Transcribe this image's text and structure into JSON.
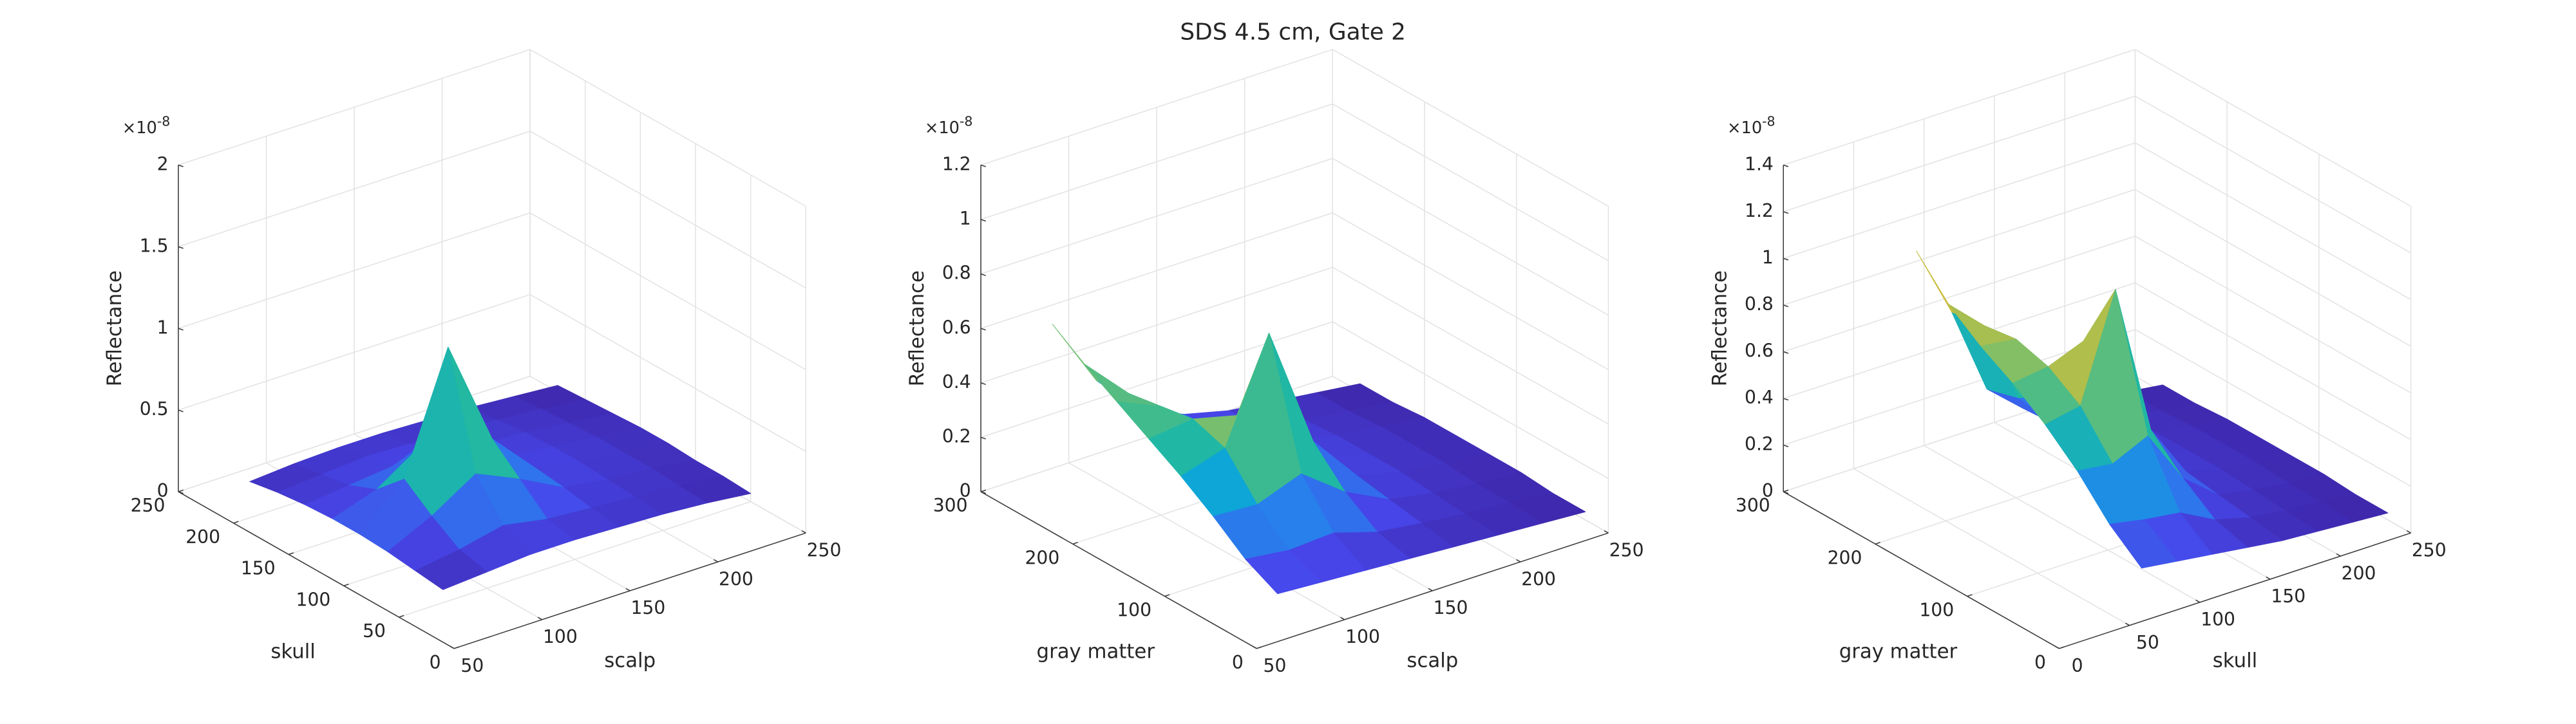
{
  "title": "SDS 4.5 cm, Gate 2",
  "chart_data": [
    {
      "type": "surface",
      "xlabel": "scalp",
      "ylabel": "skull",
      "zlabel": "Reflectance",
      "z_multiplier": "×10",
      "z_exponent": "-8",
      "colormap": "parula",
      "grid": true,
      "xlim": [
        50,
        250
      ],
      "ylim": [
        0,
        250
      ],
      "zlim": [
        0,
        2
      ],
      "xticks": [
        50,
        100,
        150,
        200,
        250
      ],
      "yticks": [
        0,
        50,
        100,
        150,
        200,
        250
      ],
      "zticks": [
        0,
        0.5,
        1,
        1.5,
        2
      ],
      "x": [
        75,
        100,
        125,
        150,
        175,
        200,
        225,
        250
      ],
      "y": [
        50,
        75,
        100,
        125,
        150,
        175,
        200,
        225
      ],
      "z": [
        [
          0.08,
          0.1,
          0.12,
          0.12,
          0.11,
          0.1,
          0.08,
          0.05
        ],
        [
          0.1,
          0.14,
          0.2,
          0.15,
          0.13,
          0.11,
          0.09,
          0.06
        ],
        [
          0.12,
          0.25,
          0.42,
          0.3,
          0.16,
          0.12,
          0.1,
          0.06
        ],
        [
          0.13,
          0.38,
          1.1,
          0.45,
          0.18,
          0.13,
          0.1,
          0.07
        ],
        [
          0.13,
          0.22,
          0.4,
          0.25,
          0.16,
          0.13,
          0.1,
          0.07
        ],
        [
          0.12,
          0.15,
          0.18,
          0.16,
          0.14,
          0.12,
          0.09,
          0.06
        ],
        [
          0.1,
          0.12,
          0.14,
          0.13,
          0.12,
          0.1,
          0.08,
          0.05
        ],
        [
          0.07,
          0.09,
          0.1,
          0.1,
          0.09,
          0.08,
          0.06,
          0.04
        ]
      ]
    },
    {
      "type": "surface",
      "xlabel": "scalp",
      "ylabel": "gray matter",
      "zlabel": "Reflectance",
      "z_multiplier": "×10",
      "z_exponent": "-8",
      "colormap": "parula",
      "grid": true,
      "xlim": [
        50,
        250
      ],
      "ylim": [
        0,
        300
      ],
      "zlim": [
        0,
        1.2
      ],
      "xticks": [
        50,
        100,
        150,
        200,
        250
      ],
      "yticks": [
        0,
        100,
        200,
        300
      ],
      "zticks": [
        0,
        0.2,
        0.4,
        0.6,
        0.8,
        1,
        1.2
      ],
      "x": [
        75,
        100,
        125,
        150,
        175,
        200,
        225,
        250
      ],
      "y": [
        25,
        60,
        95,
        130,
        165,
        200,
        235,
        270
      ],
      "z": [
        [
          0.1,
          0.09,
          0.08,
          0.07,
          0.06,
          0.05,
          0.04,
          0.03
        ],
        [
          0.16,
          0.14,
          0.15,
          0.1,
          0.08,
          0.06,
          0.05,
          0.03
        ],
        [
          0.25,
          0.24,
          0.3,
          0.18,
          0.1,
          0.07,
          0.05,
          0.04
        ],
        [
          0.33,
          0.38,
          0.75,
          0.3,
          0.12,
          0.08,
          0.06,
          0.04
        ],
        [
          0.4,
          0.42,
          0.38,
          0.2,
          0.12,
          0.08,
          0.06,
          0.04
        ],
        [
          0.47,
          0.4,
          0.28,
          0.16,
          0.11,
          0.08,
          0.06,
          0.04
        ],
        [
          0.54,
          0.38,
          0.22,
          0.14,
          0.1,
          0.07,
          0.05,
          0.03
        ],
        [
          0.62,
          0.36,
          0.2,
          0.13,
          0.09,
          0.07,
          0.05,
          0.03
        ]
      ]
    },
    {
      "type": "surface",
      "xlabel": "skull",
      "ylabel": "gray matter",
      "zlabel": "Reflectance",
      "z_multiplier": "×10",
      "z_exponent": "-8",
      "colormap": "parula",
      "grid": true,
      "xlim": [
        0,
        250
      ],
      "ylim": [
        0,
        300
      ],
      "zlim": [
        0,
        1.4
      ],
      "xticks": [
        0,
        50,
        100,
        150,
        200,
        250
      ],
      "yticks": [
        0,
        100,
        200,
        300
      ],
      "zticks": [
        0,
        0.2,
        0.4,
        0.6,
        0.8,
        1,
        1.2,
        1.4
      ],
      "x": [
        75,
        100,
        125,
        150,
        175,
        200,
        225,
        250
      ],
      "y": [
        25,
        60,
        95,
        130,
        165,
        200,
        235,
        270
      ],
      "z": [
        [
          0.14,
          0.12,
          0.1,
          0.08,
          0.06,
          0.05,
          0.04,
          0.03
        ],
        [
          0.25,
          0.22,
          0.2,
          0.12,
          0.08,
          0.06,
          0.05,
          0.03
        ],
        [
          0.4,
          0.38,
          0.45,
          0.22,
          0.1,
          0.07,
          0.05,
          0.04
        ],
        [
          0.52,
          0.55,
          1.0,
          0.35,
          0.12,
          0.08,
          0.06,
          0.04
        ],
        [
          0.62,
          0.64,
          0.7,
          0.22,
          0.12,
          0.08,
          0.06,
          0.04
        ],
        [
          0.7,
          0.68,
          0.4,
          0.16,
          0.11,
          0.08,
          0.06,
          0.04
        ],
        [
          0.8,
          0.66,
          0.3,
          0.14,
          0.1,
          0.07,
          0.05,
          0.03
        ],
        [
          0.95,
          0.64,
          0.26,
          0.13,
          0.09,
          0.07,
          0.05,
          0.03
        ]
      ]
    }
  ]
}
